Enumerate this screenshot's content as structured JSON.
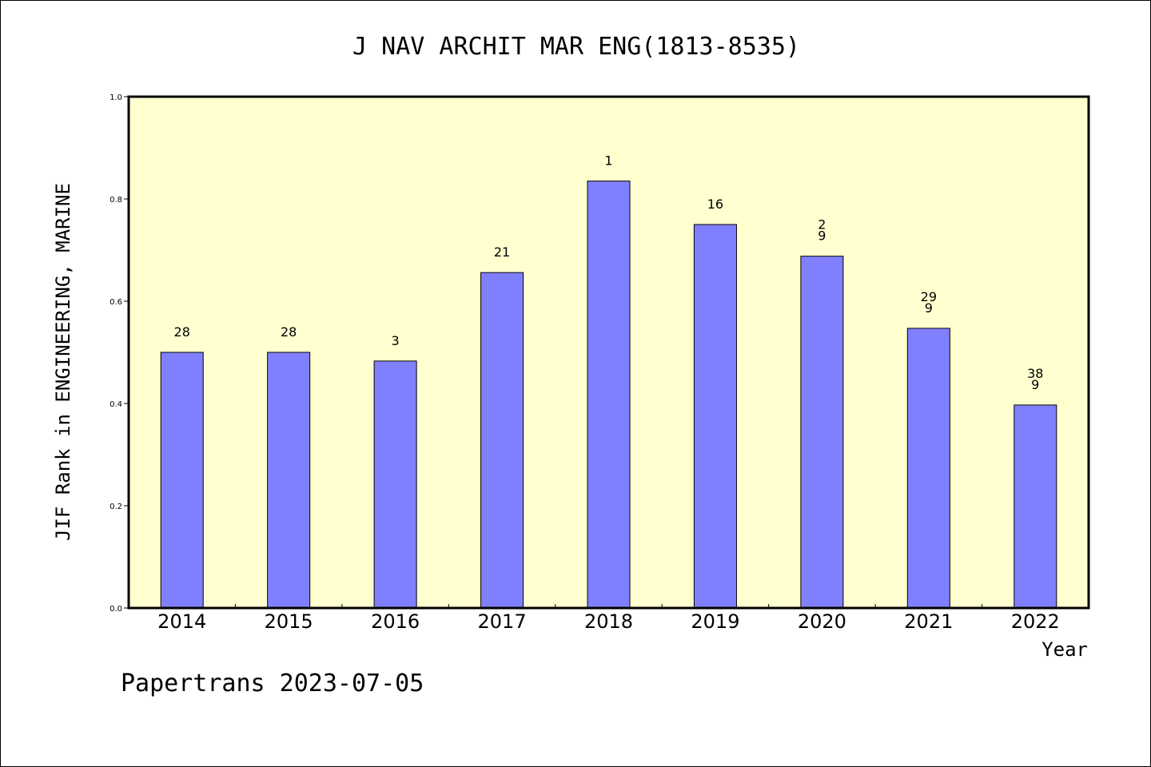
{
  "chart_data": {
    "type": "bar",
    "title": "J NAV ARCHIT MAR ENG(1813-8535)",
    "xlabel": "Year",
    "ylabel": "JIF Rank in ENGINEERING, MARINE",
    "ylim": [
      0,
      1.0
    ],
    "yticks": [
      "0.0",
      "0.2",
      "0.4",
      "0.6",
      "0.8",
      "1.0"
    ],
    "categories": [
      "2014",
      "2015",
      "2016",
      "2017",
      "2018",
      "2019",
      "2020",
      "2021",
      "2022"
    ],
    "values": [
      0.5,
      0.5,
      0.483,
      0.656,
      0.835,
      0.75,
      0.688,
      0.547,
      0.397
    ],
    "data_labels": [
      [
        "28"
      ],
      [
        "28"
      ],
      [
        "3"
      ],
      [
        "21"
      ],
      [
        "1"
      ],
      [
        "16"
      ],
      [
        "2",
        "9"
      ],
      [
        "29",
        "9"
      ],
      [
        "38",
        "9"
      ]
    ],
    "grid": false,
    "legend": "none",
    "colors": {
      "plot_background": "#ffffd0",
      "bar_fill": "#8080ff",
      "bar_stroke": "#000000"
    }
  },
  "footer": "Papertrans 2023-07-05"
}
